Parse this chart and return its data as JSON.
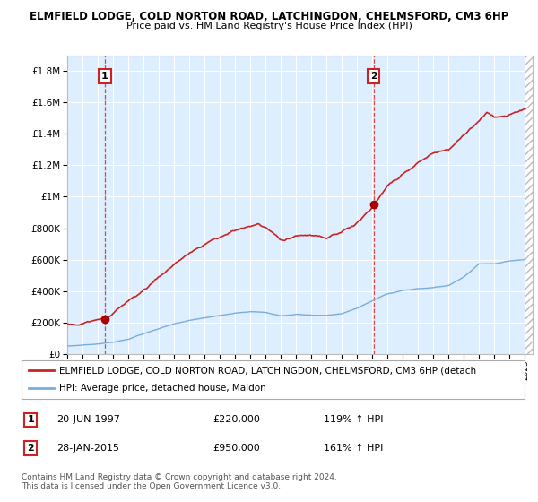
{
  "title1": "ELMFIELD LODGE, COLD NORTON ROAD, LATCHINGDON, CHELMSFORD, CM3 6HP",
  "title2": "Price paid vs. HM Land Registry's House Price Index (HPI)",
  "ylim": [
    0,
    1900000
  ],
  "xlim_start": 1995.0,
  "xlim_end": 2025.5,
  "sale1_year": 1997.47,
  "sale1_price": 220000,
  "sale2_year": 2015.08,
  "sale2_price": 950000,
  "sale1_label": "1",
  "sale2_label": "2",
  "sale1_date": "20-JUN-1997",
  "sale1_hpi": "119% ↑ HPI",
  "sale2_date": "28-JAN-2015",
  "sale2_hpi": "161% ↑ HPI",
  "hpi_line_color": "#7aaddb",
  "price_line_color": "#cc2222",
  "dot_color": "#aa0000",
  "plot_bg_color": "#ddeeff",
  "grid_color": "#ffffff",
  "legend_label1": "ELMFIELD LODGE, COLD NORTON ROAD, LATCHINGDON, CHELMSFORD, CM3 6HP (detach",
  "legend_label2": "HPI: Average price, detached house, Maldon",
  "footer": "Contains HM Land Registry data © Crown copyright and database right 2024.\nThis data is licensed under the Open Government Licence v3.0.",
  "yticks": [
    0,
    200000,
    400000,
    600000,
    800000,
    1000000,
    1200000,
    1400000,
    1600000,
    1800000
  ]
}
